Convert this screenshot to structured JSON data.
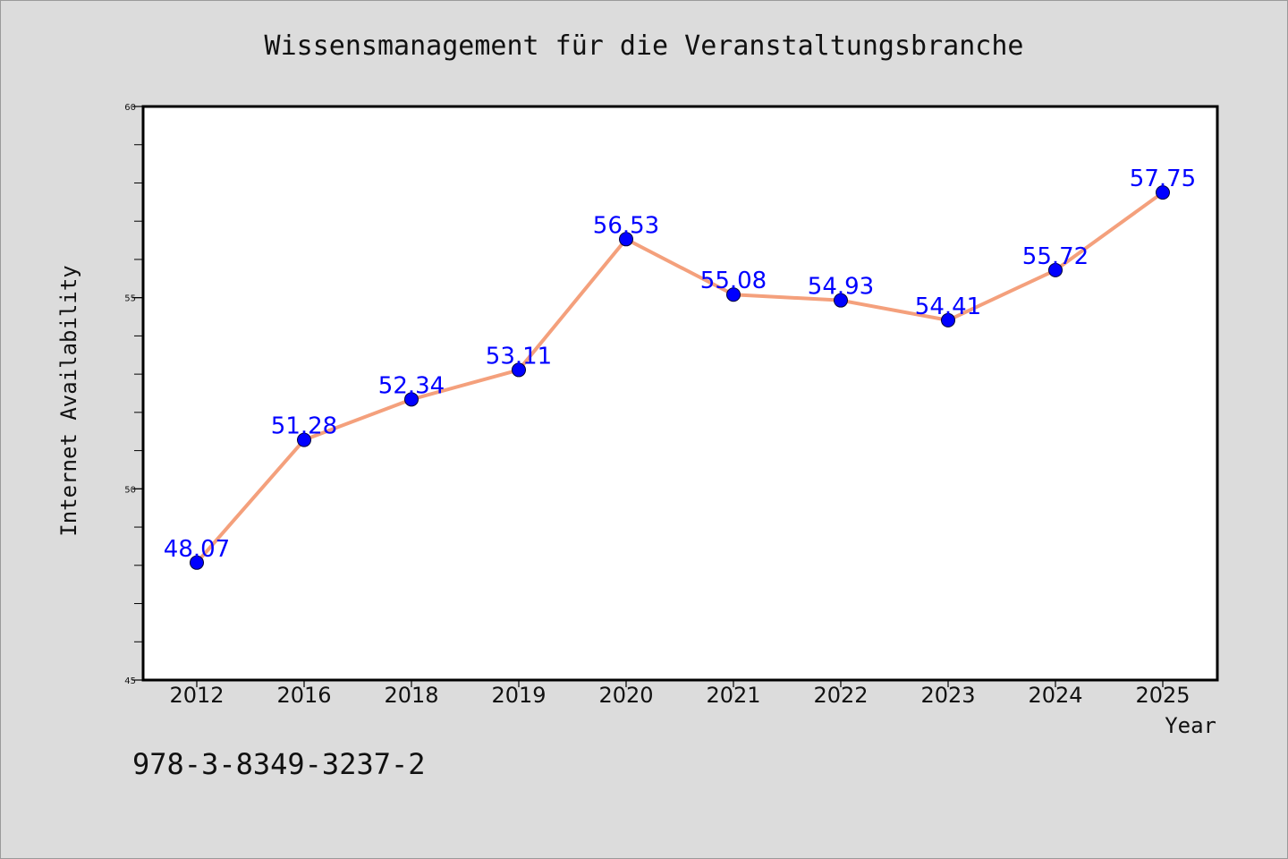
{
  "chart_data": {
    "type": "line",
    "title": "Wissensmanagement für die Veranstaltungsbranche",
    "xlabel": "Year",
    "ylabel": "Internet Availability",
    "categories": [
      "2012",
      "2016",
      "2018",
      "2019",
      "2020",
      "2021",
      "2022",
      "2023",
      "2024",
      "2025"
    ],
    "series": [
      {
        "values": [
          48.07,
          51.28,
          52.34,
          53.11,
          56.53,
          55.08,
          54.93,
          54.41,
          55.72,
          57.75
        ],
        "data_labels": [
          "48.07",
          "51.28",
          "52.34",
          "53.11",
          "56.53",
          "55.08",
          "54.93",
          "54.41",
          "55.72",
          "57.75"
        ],
        "line_color": "#f4a07c",
        "marker_color": "#0000ff"
      }
    ],
    "ylim": [
      45,
      60
    ],
    "yticks": [
      "45",
      "50",
      "55",
      "60"
    ],
    "grid": false,
    "legend": "none"
  },
  "footer": {
    "isbn": "978-3-8349-3237-2"
  },
  "colors": {
    "background": "#dcdcdc",
    "plot_background": "#ffffff",
    "line": "#f4a07c",
    "marker": "#0000ff",
    "data_label": "#0000ff"
  }
}
